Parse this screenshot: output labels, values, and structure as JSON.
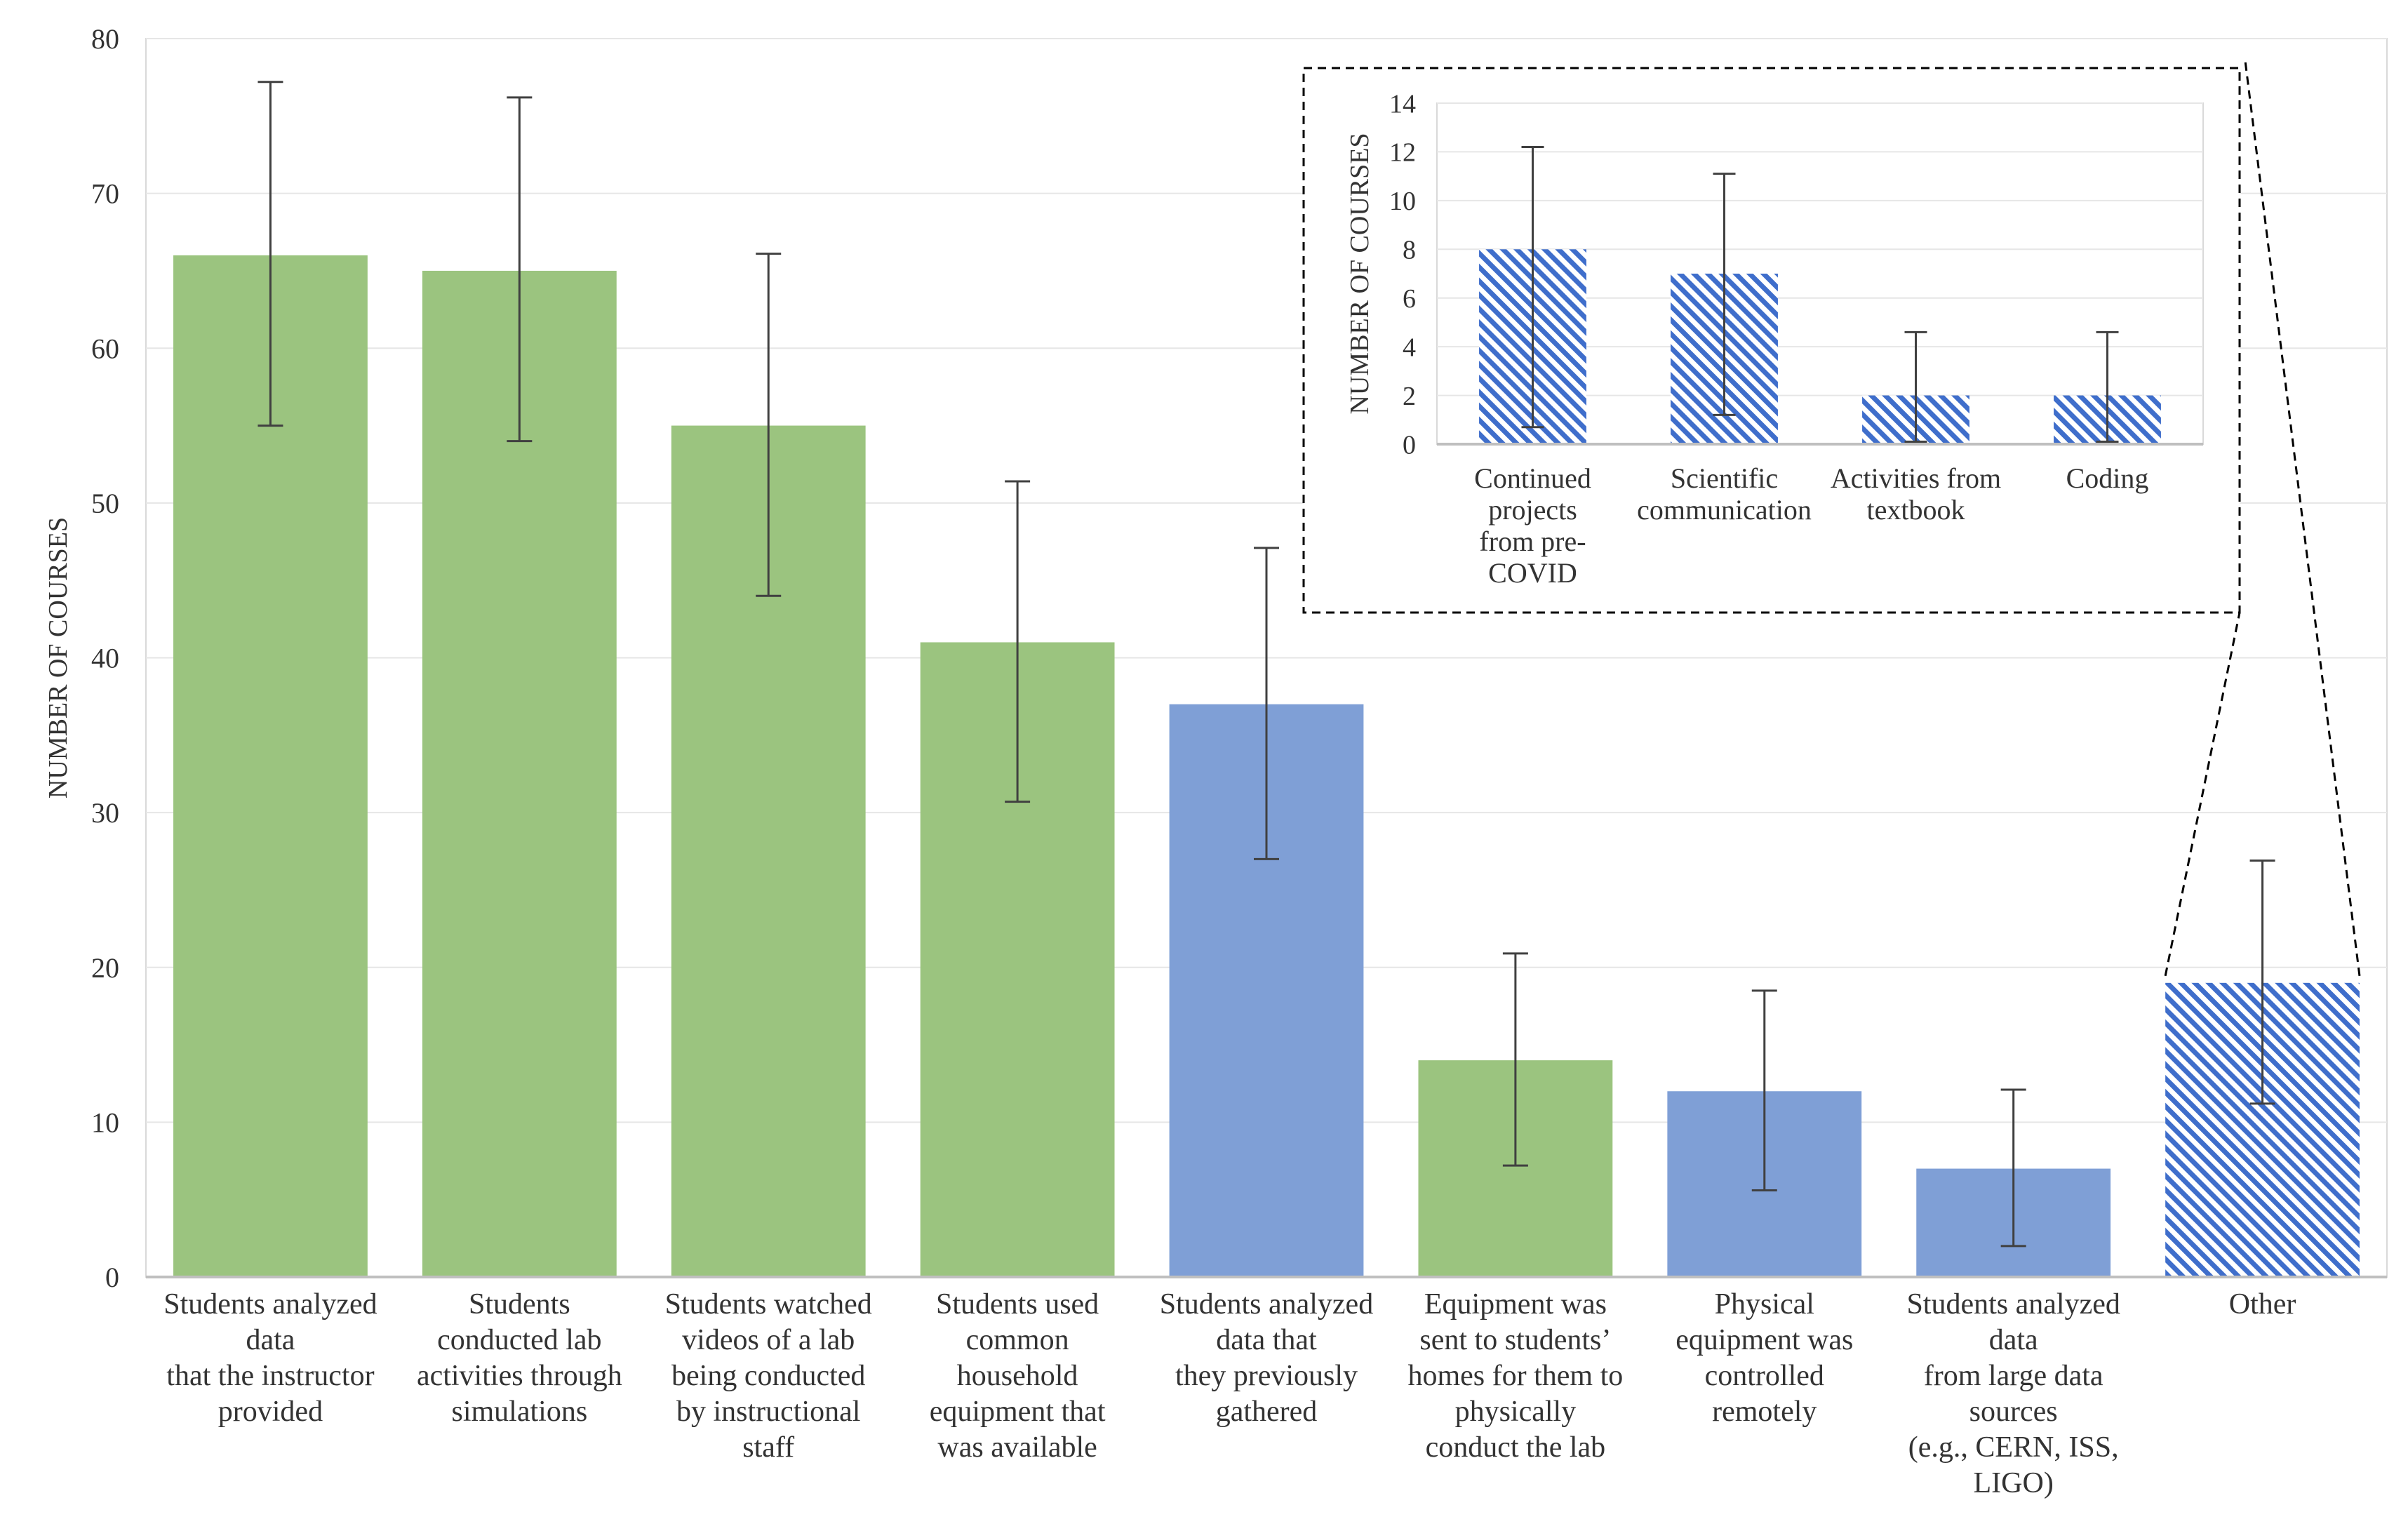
{
  "colors": {
    "green": "#9bc47f",
    "blue": "#7f9fd6",
    "hatch_blue": "#3f6ecb",
    "error_bar": "#404040",
    "gridline": "#e6e6e6",
    "axis": "#bfbfbf"
  },
  "chart_data": [
    {
      "type": "bar",
      "title": "",
      "xlabel": "",
      "ylabel": "NUMBER OF COURSES",
      "ylim": [
        0,
        80
      ],
      "yticks": [
        "0",
        "10",
        "20",
        "30",
        "40",
        "50",
        "60",
        "70",
        "80"
      ],
      "grid": true,
      "categories": [
        [
          "Students analyzed",
          "data",
          "that the instructor",
          "provided"
        ],
        [
          "Students",
          "conducted lab",
          "activities through",
          "simulations"
        ],
        [
          "Students watched",
          "videos of a lab",
          "being conducted",
          "by instructional",
          "staff"
        ],
        [
          "Students used",
          "common",
          "household",
          "equipment that",
          "was available"
        ],
        [
          "Students analyzed",
          "data that",
          "they previously",
          "gathered"
        ],
        [
          "Equipment was",
          "sent to students’",
          "homes for them to",
          "physically",
          "conduct the lab"
        ],
        [
          "Physical",
          "equipment was",
          "controlled",
          "remotely"
        ],
        [
          "Students analyzed",
          "data",
          "from large data",
          "sources",
          "(e.g., CERN, ISS,",
          "LIGO)"
        ],
        [
          "Other"
        ]
      ],
      "values": [
        66,
        65,
        55,
        41,
        37,
        14,
        12,
        7,
        19
      ],
      "error_low": [
        55,
        54,
        44,
        30.7,
        27,
        7.2,
        5.6,
        2,
        11.2
      ],
      "error_high": [
        77.2,
        76.2,
        66.1,
        51.4,
        47.1,
        20.9,
        18.5,
        12.1,
        26.9
      ],
      "fill": [
        "green",
        "green",
        "green",
        "green",
        "blue",
        "green",
        "blue",
        "blue",
        "hatch"
      ]
    },
    {
      "type": "bar",
      "title": "",
      "xlabel": "",
      "ylabel": "NUMBER OF COURSES",
      "ylim": [
        0,
        14
      ],
      "yticks": [
        "0",
        "2",
        "4",
        "6",
        "8",
        "10",
        "12",
        "14"
      ],
      "grid": true,
      "categories": [
        [
          "Continued",
          "projects",
          "from pre-",
          "COVID"
        ],
        [
          "Scientific",
          "communication"
        ],
        [
          "Activities from",
          "textbook"
        ],
        [
          "Coding"
        ]
      ],
      "values": [
        8,
        7,
        2,
        2
      ],
      "error_low": [
        0.7,
        1.2,
        0.1,
        0.1
      ],
      "error_high": [
        12.2,
        11.1,
        4.6,
        4.6
      ],
      "fill": [
        "hatch",
        "hatch",
        "hatch",
        "hatch"
      ]
    }
  ]
}
